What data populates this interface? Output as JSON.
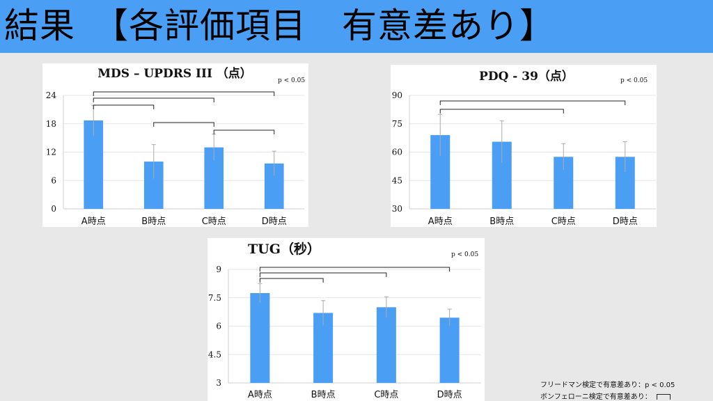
{
  "header": {
    "title": "結果　【各評価項目　有意差あり】",
    "background": "#4a9ff5"
  },
  "colors": {
    "bar": "#4a9ff5",
    "error": "#aaaaaa",
    "bracket": "#222222",
    "grid": "#e6e6e6"
  },
  "chart_data": [
    {
      "type": "bar",
      "title": "MDS – UPDRS III （点）",
      "note": "p < 0.05",
      "categories": [
        "A時点",
        "B時点",
        "C時点",
        "D時点"
      ],
      "values": [
        18.7,
        10.0,
        13.0,
        9.6
      ],
      "error": [
        3.2,
        3.6,
        2.8,
        2.6
      ],
      "ylim": [
        0,
        24
      ],
      "yticks": [
        "0",
        "6",
        "12",
        "18",
        "24"
      ],
      "ytick_values": [
        0,
        6,
        12,
        18,
        24
      ],
      "grid": true,
      "brackets": [
        [
          0,
          3
        ],
        [
          0,
          2
        ],
        [
          0,
          1
        ],
        [
          1,
          2
        ],
        [
          2,
          3
        ]
      ]
    },
    {
      "type": "bar",
      "title": "PDQ - 39（点）",
      "note": "p < 0.05",
      "categories": [
        "A時点",
        "B時点",
        "C時点",
        "D時点"
      ],
      "values": [
        69.0,
        65.5,
        57.5,
        57.5
      ],
      "error": [
        11.0,
        11.0,
        7.0,
        8.0
      ],
      "ylim": [
        30,
        90
      ],
      "yticks": [
        "30",
        "45",
        "60",
        "75",
        "90"
      ],
      "ytick_values": [
        30,
        45,
        60,
        75,
        90
      ],
      "grid": true,
      "brackets": [
        [
          0,
          3
        ],
        [
          0,
          2
        ]
      ]
    },
    {
      "type": "bar",
      "title": "TUG（秒）",
      "note": "p < 0.05",
      "categories": [
        "A時点",
        "B時点",
        "C時点",
        "D時点"
      ],
      "values": [
        7.75,
        6.7,
        7.0,
        6.45
      ],
      "error": [
        0.5,
        0.65,
        0.55,
        0.45
      ],
      "ylim": [
        3,
        9
      ],
      "yticks": [
        "3",
        "4.5",
        "6",
        "7.5",
        "9"
      ],
      "ytick_values": [
        3,
        4.5,
        6,
        7.5,
        9
      ],
      "grid": true,
      "brackets": [
        [
          0,
          3
        ],
        [
          0,
          2
        ],
        [
          0,
          1
        ]
      ]
    }
  ],
  "footnotes": {
    "line1": "フリードマン検定で有意差あり：p < 0.05",
    "line2": "ボンフェローニ検定で有意差あり："
  }
}
